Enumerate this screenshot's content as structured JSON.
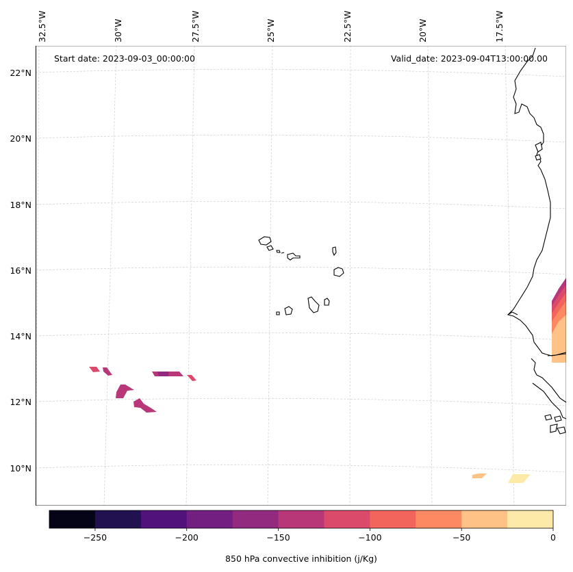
{
  "map": {
    "start_date": "Start date: 2023-09-03_00:00:00",
    "valid_date": "Valid_date: 2023-09-04T13:00:00.00",
    "lon_labels": [
      "32.5°W",
      "30°W",
      "27.5°W",
      "25°W",
      "22.5°W",
      "20°W",
      "17.5°W"
    ],
    "lat_labels": [
      "22°N",
      "20°N",
      "18°N",
      "16°N",
      "14°N",
      "12°N",
      "10°N"
    ]
  },
  "colorbar": {
    "label": "850 hPa convective inhibition (j/Kg)",
    "ticks": [
      "−250",
      "−200",
      "−150",
      "−100",
      "−50",
      "0"
    ],
    "min": -275,
    "max": 0,
    "colors": [
      "#050417",
      "#221150",
      "#51127c",
      "#721f81",
      "#922a7f",
      "#b73779",
      "#dc4a6b",
      "#f2655c",
      "#fc8961",
      "#fec287",
      "#fde9a8"
    ]
  }
}
